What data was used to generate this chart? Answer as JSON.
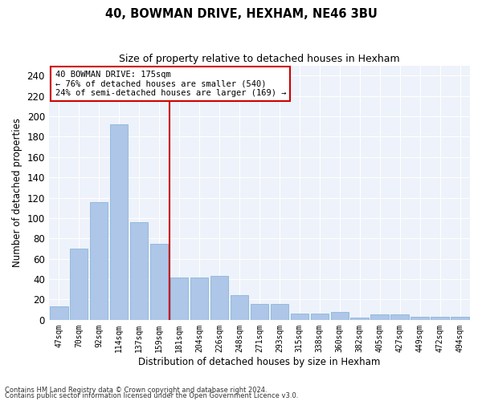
{
  "title": "40, BOWMAN DRIVE, HEXHAM, NE46 3BU",
  "subtitle": "Size of property relative to detached houses in Hexham",
  "xlabel": "Distribution of detached houses by size in Hexham",
  "ylabel": "Number of detached properties",
  "bar_color": "#aec6e8",
  "bar_edge_color": "#7bafd4",
  "background_color": "#eef2fa",
  "grid_color": "#ffffff",
  "annotation_box_color": "#cc0000",
  "vline_color": "#cc0000",
  "vline_x_idx": 6,
  "annotation_text_line1": "40 BOWMAN DRIVE: 175sqm",
  "annotation_text_line2": "← 76% of detached houses are smaller (540)",
  "annotation_text_line3": "24% of semi-detached houses are larger (169) →",
  "categories": [
    "47sqm",
    "70sqm",
    "92sqm",
    "114sqm",
    "137sqm",
    "159sqm",
    "181sqm",
    "204sqm",
    "226sqm",
    "248sqm",
    "271sqm",
    "293sqm",
    "315sqm",
    "338sqm",
    "360sqm",
    "382sqm",
    "405sqm",
    "427sqm",
    "449sqm",
    "472sqm",
    "494sqm"
  ],
  "values": [
    13,
    70,
    116,
    192,
    96,
    75,
    42,
    42,
    43,
    24,
    16,
    16,
    6,
    6,
    8,
    2,
    5,
    5,
    3,
    3,
    3
  ],
  "ylim": [
    0,
    250
  ],
  "yticks": [
    0,
    20,
    40,
    60,
    80,
    100,
    120,
    140,
    160,
    180,
    200,
    220,
    240
  ],
  "footnote1": "Contains HM Land Registry data © Crown copyright and database right 2024.",
  "footnote2": "Contains public sector information licensed under the Open Government Licence v3.0.",
  "fig_width": 6.0,
  "fig_height": 5.0,
  "dpi": 100
}
